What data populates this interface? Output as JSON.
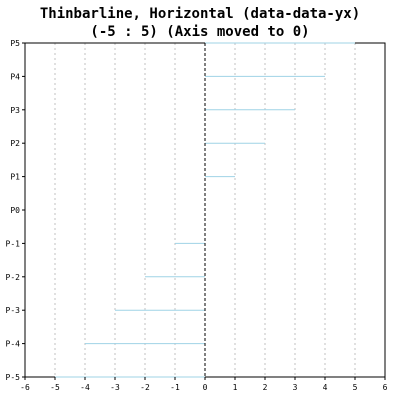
{
  "chart_data": {
    "type": "bar",
    "orientation": "horizontal",
    "title": "Thinbarline, Horizontal (data-data-yx)",
    "subtitle": "(-5 : 5) (Axis moved to 0)",
    "categories": [
      "P-5",
      "P-4",
      "P-3",
      "P-2",
      "P-1",
      "P0",
      "P1",
      "P2",
      "P3",
      "P4",
      "P5"
    ],
    "values": [
      -5,
      -4,
      -3,
      -2,
      -1,
      0,
      1,
      2,
      3,
      4,
      5
    ],
    "x_ticks": [
      "-6",
      "-5",
      "-4",
      "-3",
      "-2",
      "-1",
      "0",
      "1",
      "2",
      "3",
      "4",
      "5",
      "6"
    ],
    "xlim": [
      -6,
      6
    ],
    "xlabel": "",
    "ylabel": "",
    "grid": "vertical dotted",
    "axis_at_zero": true,
    "bar_color": "#9fd3e6",
    "grid_color": "#c0c0c0",
    "zero_axis_color": "#000000"
  }
}
